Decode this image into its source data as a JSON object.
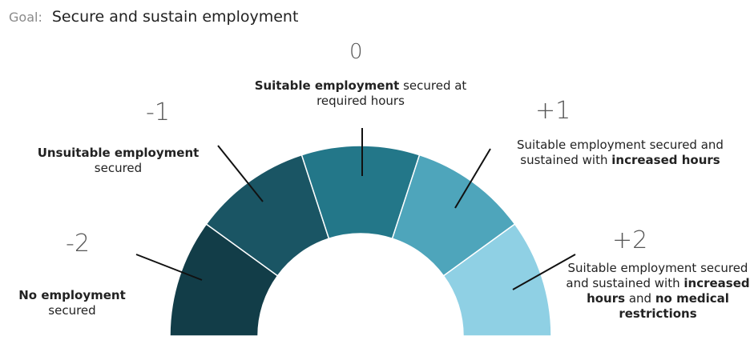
{
  "goal": {
    "prefix": "Goal:",
    "text": "Secure and sustain employment"
  },
  "levels": [
    {
      "score": "-2",
      "bold": "No employment",
      "rest": "secured",
      "color": "#123d48"
    },
    {
      "score": "-1",
      "bold": "Unsuitable employment",
      "rest": "secured",
      "color": "#1a5564"
    },
    {
      "score": "0",
      "bold": "Suitable employment",
      "rest": "secured at required hours",
      "color": "#237789"
    },
    {
      "score": "+1",
      "plain": "Suitable employment secured and sustained with",
      "bold": "increased hours",
      "color": "#4ea5bb"
    },
    {
      "score": "+2",
      "plain": "Suitable employment secured and sustained with",
      "bold": "increased hours",
      "mid": "and",
      "bold2": "no medical restrictions",
      "color": "#8fd0e4"
    }
  ]
}
